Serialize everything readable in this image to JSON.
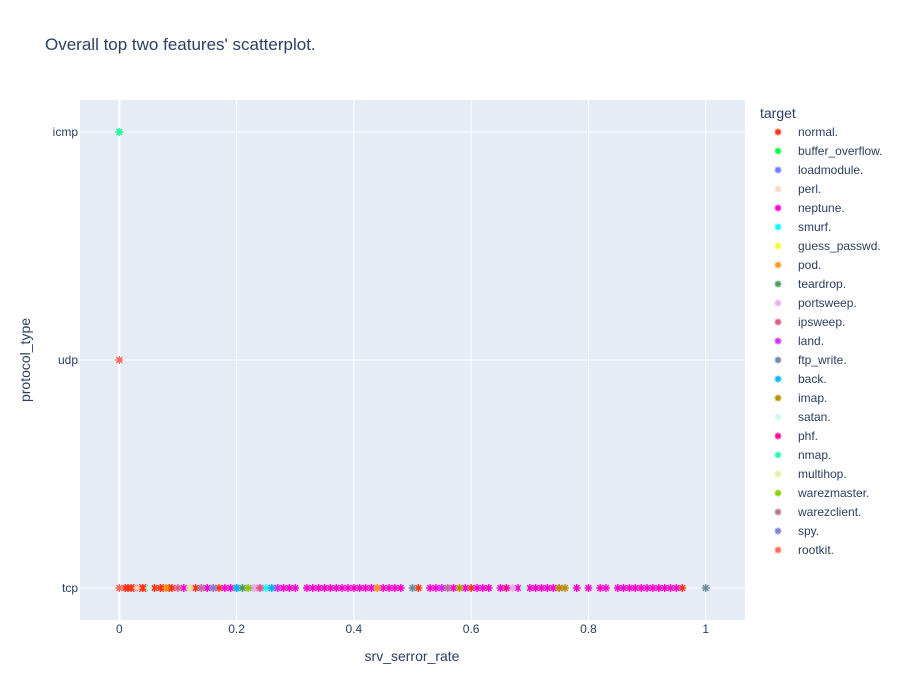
{
  "chart_data": {
    "type": "scatter",
    "title": "Overall top two features' scatterplot.",
    "xlabel": "srv_serror_rate",
    "ylabel": "protocol_type",
    "xlim": [
      -0.067,
      1.067
    ],
    "x_ticks": [
      "0",
      "0.2",
      "0.4",
      "0.6",
      "0.8",
      "1"
    ],
    "x_tick_values": [
      0,
      0.2,
      0.4,
      0.6,
      0.8,
      1
    ],
    "categories": [
      "tcp",
      "udp",
      "icmp"
    ],
    "grid": true,
    "plot_background": "#e5ecf6",
    "marker": "asterisk",
    "legend_title": "target",
    "legend_position": "right",
    "series": [
      {
        "name": "normal.",
        "color": "#FD3216",
        "points": [
          [
            0.01,
            "tcp"
          ],
          [
            0.015,
            "tcp"
          ],
          [
            0.02,
            "tcp"
          ],
          [
            0.025,
            "tcp"
          ],
          [
            0.03,
            "tcp"
          ],
          [
            0.035,
            "tcp"
          ],
          [
            0.04,
            "tcp"
          ],
          [
            0.045,
            "tcp"
          ],
          [
            0.06,
            "tcp"
          ],
          [
            0.07,
            "tcp"
          ],
          [
            0.075,
            "tcp"
          ],
          [
            0.085,
            "tcp"
          ],
          [
            0.09,
            "tcp"
          ],
          [
            0.13,
            "tcp"
          ],
          [
            0.17,
            "tcp"
          ],
          [
            0.2,
            "tcp"
          ],
          [
            0.27,
            "tcp"
          ],
          [
            0.51,
            "tcp"
          ],
          [
            0.6,
            "tcp"
          ],
          [
            0.96,
            "tcp"
          ]
        ]
      },
      {
        "name": "buffer_overflow.",
        "color": "#00FE35",
        "points": [
          [
            0,
            "icmp"
          ]
        ]
      },
      {
        "name": "loadmodule.",
        "color": "#6A76FC",
        "points": [
          [
            0.2,
            "tcp"
          ]
        ]
      },
      {
        "name": "perl.",
        "color": "#FED4C4",
        "points": [
          [
            0.03,
            "tcp"
          ]
        ]
      },
      {
        "name": "neptune.",
        "color": "#FE00CE",
        "points": [
          [
            0.11,
            "tcp"
          ],
          [
            0.12,
            "tcp"
          ],
          [
            0.14,
            "tcp"
          ],
          [
            0.15,
            "tcp"
          ],
          [
            0.16,
            "tcp"
          ],
          [
            0.18,
            "tcp"
          ],
          [
            0.19,
            "tcp"
          ],
          [
            0.22,
            "tcp"
          ],
          [
            0.23,
            "tcp"
          ],
          [
            0.24,
            "tcp"
          ],
          [
            0.26,
            "tcp"
          ],
          [
            0.28,
            "tcp"
          ],
          [
            0.29,
            "tcp"
          ],
          [
            0.3,
            "tcp"
          ],
          [
            0.32,
            "tcp"
          ],
          [
            0.33,
            "tcp"
          ],
          [
            0.34,
            "tcp"
          ],
          [
            0.35,
            "tcp"
          ],
          [
            0.36,
            "tcp"
          ],
          [
            0.37,
            "tcp"
          ],
          [
            0.38,
            "tcp"
          ],
          [
            0.39,
            "tcp"
          ],
          [
            0.4,
            "tcp"
          ],
          [
            0.41,
            "tcp"
          ],
          [
            0.42,
            "tcp"
          ],
          [
            0.43,
            "tcp"
          ],
          [
            0.44,
            "tcp"
          ],
          [
            0.45,
            "tcp"
          ],
          [
            0.46,
            "tcp"
          ],
          [
            0.47,
            "tcp"
          ],
          [
            0.48,
            "tcp"
          ],
          [
            0.53,
            "tcp"
          ],
          [
            0.54,
            "tcp"
          ],
          [
            0.55,
            "tcp"
          ],
          [
            0.56,
            "tcp"
          ],
          [
            0.57,
            "tcp"
          ],
          [
            0.59,
            "tcp"
          ],
          [
            0.61,
            "tcp"
          ],
          [
            0.62,
            "tcp"
          ],
          [
            0.63,
            "tcp"
          ],
          [
            0.65,
            "tcp"
          ],
          [
            0.68,
            "tcp"
          ],
          [
            0.7,
            "tcp"
          ],
          [
            0.71,
            "tcp"
          ],
          [
            0.72,
            "tcp"
          ],
          [
            0.73,
            "tcp"
          ],
          [
            0.74,
            "tcp"
          ],
          [
            0.75,
            "tcp"
          ],
          [
            0.78,
            "tcp"
          ],
          [
            0.8,
            "tcp"
          ],
          [
            0.82,
            "tcp"
          ],
          [
            0.83,
            "tcp"
          ],
          [
            0.85,
            "tcp"
          ],
          [
            0.86,
            "tcp"
          ],
          [
            0.87,
            "tcp"
          ],
          [
            0.88,
            "tcp"
          ],
          [
            0.89,
            "tcp"
          ],
          [
            0.9,
            "tcp"
          ],
          [
            0.91,
            "tcp"
          ],
          [
            0.92,
            "tcp"
          ],
          [
            0.93,
            "tcp"
          ],
          [
            0.94,
            "tcp"
          ],
          [
            0.95,
            "tcp"
          ]
        ]
      },
      {
        "name": "smurf.",
        "color": "#0DF9FF",
        "points": [
          [
            0.25,
            "tcp"
          ]
        ]
      },
      {
        "name": "guess_passwd.",
        "color": "#F6F926",
        "points": [
          [
            0.58,
            "tcp"
          ]
        ]
      },
      {
        "name": "pod.",
        "color": "#FF9616",
        "points": [
          [
            0.08,
            "tcp"
          ],
          [
            0.44,
            "tcp"
          ]
        ]
      },
      {
        "name": "teardrop.",
        "color": "#479B55",
        "points": [
          [
            0.21,
            "tcp"
          ]
        ]
      },
      {
        "name": "portsweep.",
        "color": "#EEA6FB",
        "points": [
          [
            0.23,
            "tcp"
          ],
          [
            0.67,
            "tcp"
          ]
        ]
      },
      {
        "name": "ipsweep.",
        "color": "#DC587D",
        "points": [
          [
            0.1,
            "tcp"
          ],
          [
            0.24,
            "tcp"
          ]
        ]
      },
      {
        "name": "land.",
        "color": "#D626FF",
        "points": [
          [
            0.27,
            "tcp"
          ],
          [
            0.55,
            "tcp"
          ]
        ]
      },
      {
        "name": "ftp_write.",
        "color": "#6E899C",
        "points": [
          [
            0.5,
            "tcp"
          ],
          [
            1,
            "tcp"
          ]
        ]
      },
      {
        "name": "back.",
        "color": "#00B5F7",
        "points": [
          [
            0.2,
            "tcp"
          ],
          [
            0.26,
            "tcp"
          ]
        ]
      },
      {
        "name": "imap.",
        "color": "#B68E00",
        "points": [
          [
            0.58,
            "tcp"
          ],
          [
            0.75,
            "tcp"
          ],
          [
            0.76,
            "tcp"
          ]
        ]
      },
      {
        "name": "satan.",
        "color": "#C9FBE5",
        "points": [
          [
            0.05,
            "tcp"
          ],
          [
            0.69,
            "tcp"
          ]
        ]
      },
      {
        "name": "phf.",
        "color": "#FF0092",
        "points": [
          [
            0.66,
            "tcp"
          ]
        ]
      },
      {
        "name": "nmap.",
        "color": "#22FFA7",
        "points": [
          [
            0,
            "icmp"
          ]
        ]
      },
      {
        "name": "multihop.",
        "color": "#E3EE9E",
        "points": [
          [
            0.12,
            "tcp"
          ]
        ]
      },
      {
        "name": "warezmaster.",
        "color": "#86CE00",
        "points": [
          [
            0.22,
            "tcp"
          ]
        ]
      },
      {
        "name": "warezclient.",
        "color": "#BC7196",
        "points": [
          [
            0.14,
            "tcp"
          ],
          [
            0.56,
            "tcp"
          ]
        ]
      },
      {
        "name": "spy.",
        "color": "#7E7DCD",
        "points": [
          [
            0.16,
            "tcp"
          ]
        ]
      },
      {
        "name": "rootkit.",
        "color": "#FC6955",
        "points": [
          [
            0,
            "udp"
          ],
          [
            0,
            "tcp"
          ]
        ]
      }
    ]
  }
}
